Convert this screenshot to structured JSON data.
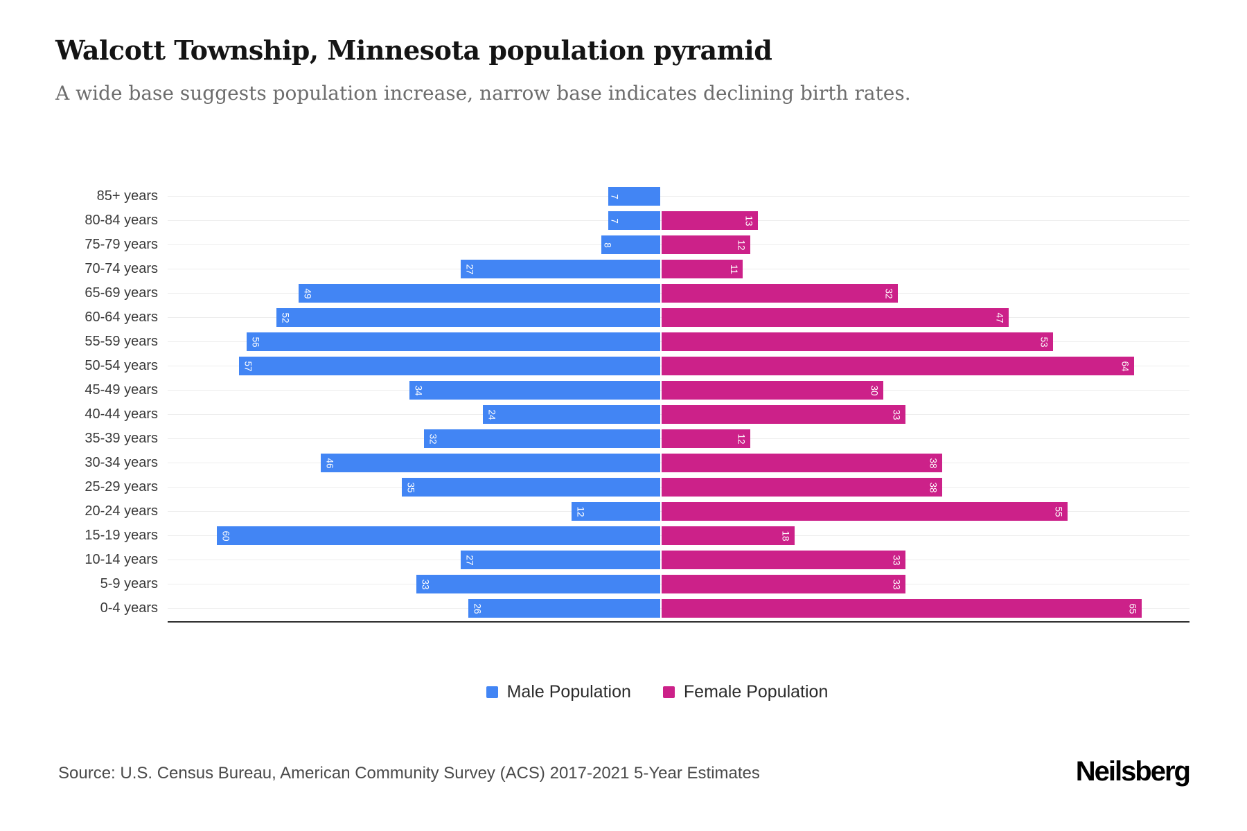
{
  "page": {
    "title": "Walcott Township, Minnesota population pyramid",
    "subtitle": "A wide base suggests population increase, narrow base indicates declining birth rates.",
    "source": "Source: U.S. Census Bureau, American Community Survey (ACS) 2017-2021 5-Year Estimates",
    "logo": "Neilsberg"
  },
  "legend": {
    "male": "Male Population",
    "female": "Female Population"
  },
  "colors": {
    "male": "#4285F4",
    "female": "#CC2189",
    "gridline": "#EDEDED",
    "axis": "#2D2D2D",
    "title": "#141414",
    "subtitle": "#6D6D6D",
    "axis_label": "#3A3A3A",
    "value_label": "#FFFFFF"
  },
  "chart_data": {
    "type": "bar",
    "variant": "population-pyramid",
    "orientation": "horizontal",
    "title": "Walcott Township, Minnesota population pyramid",
    "categories": [
      "85+ years",
      "80-84 years",
      "75-79 years",
      "70-74 years",
      "65-69 years",
      "60-64 years",
      "55-59 years",
      "50-54 years",
      "45-49 years",
      "40-44 years",
      "35-39 years",
      "30-34 years",
      "25-29 years",
      "20-24 years",
      "15-19 years",
      "10-14 years",
      "5-9 years",
      "0-4 years"
    ],
    "series": [
      {
        "name": "Male Population",
        "side": "left",
        "color": "#4285F4",
        "values": [
          7,
          7,
          8,
          27,
          49,
          52,
          56,
          57,
          34,
          24,
          32,
          46,
          35,
          12,
          60,
          27,
          33,
          26
        ]
      },
      {
        "name": "Female Population",
        "side": "right",
        "color": "#CC2189",
        "values": [
          0,
          13,
          12,
          11,
          32,
          47,
          53,
          64,
          30,
          33,
          12,
          38,
          38,
          55,
          18,
          33,
          33,
          65
        ]
      }
    ],
    "value_labels": "inside bar end, rotated 90deg, white",
    "x_axis": {
      "tick_labels_visible": false,
      "left_max": 66,
      "right_max": 71
    },
    "grid": "light horizontal gridline per age row",
    "legend_position": "bottom-center"
  }
}
